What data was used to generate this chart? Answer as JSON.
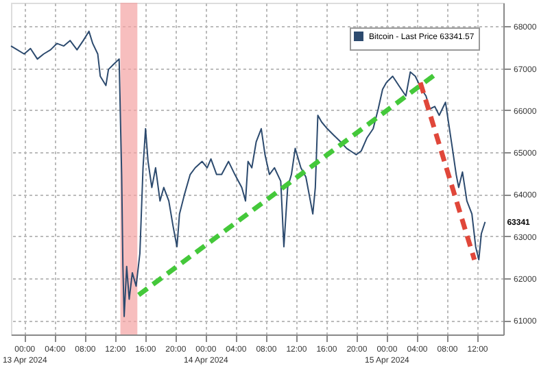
{
  "chart_data": {
    "type": "line",
    "xlim": [
      "2024-04-12T22:15",
      "2024-04-15T15:30"
    ],
    "xticks": [
      {
        "value": "2024-04-13T00:00",
        "label": "00:00\n13 Apr 2024"
      },
      {
        "value": "2024-04-13T04:00",
        "label": "04:00"
      },
      {
        "value": "2024-04-13T08:00",
        "label": "08:00"
      },
      {
        "value": "2024-04-13T12:00",
        "label": "12:00"
      },
      {
        "value": "2024-04-13T16:00",
        "label": "16:00"
      },
      {
        "value": "2024-04-13T20:00",
        "label": "20:00"
      },
      {
        "value": "2024-04-14T00:00",
        "label": "00:00\n14 Apr 2024"
      },
      {
        "value": "2024-04-14T04:00",
        "label": "04:00"
      },
      {
        "value": "2024-04-14T08:00",
        "label": "08:00"
      },
      {
        "value": "2024-04-14T12:00",
        "label": "12:00"
      },
      {
        "value": "2024-04-14T16:00",
        "label": "16:00"
      },
      {
        "value": "2024-04-14T20:00",
        "label": "20:00"
      },
      {
        "value": "2024-04-15T00:00",
        "label": "00:00\n15 Apr 2024"
      },
      {
        "value": "2024-04-15T04:00",
        "label": "04:00"
      },
      {
        "value": "2024-04-15T08:00",
        "label": "08:00"
      },
      {
        "value": "2024-04-15T12:00",
        "label": "12:00"
      }
    ],
    "ylim": [
      60660,
      68560
    ],
    "yticks": [
      61000,
      62000,
      63000,
      64000,
      65000,
      66000,
      67000,
      68000
    ],
    "grid": true,
    "legend": "top right",
    "series": [
      {
        "name": "Bitcoin - Last Price 63341.57",
        "color": "#2c4a6e",
        "x": [
          "2024-04-12T22:15",
          "2024-04-12T23:05",
          "2024-04-13T00:00",
          "2024-04-13T00:50",
          "2024-04-13T01:45",
          "2024-04-13T02:35",
          "2024-04-13T03:30",
          "2024-04-13T04:20",
          "2024-04-13T05:15",
          "2024-04-13T06:05",
          "2024-04-13T07:00",
          "2024-04-13T07:50",
          "2024-04-13T08:35",
          "2024-04-13T09:05",
          "2024-04-13T09:45",
          "2024-04-13T10:05",
          "2024-04-13T10:50",
          "2024-04-13T11:10",
          "2024-04-13T11:50",
          "2024-04-13T12:35",
          "2024-04-13T12:55",
          "2024-04-13T13:05",
          "2024-04-13T13:15",
          "2024-04-13T13:35",
          "2024-04-13T13:55",
          "2024-04-13T14:20",
          "2024-04-13T14:50",
          "2024-04-13T15:20",
          "2024-04-13T15:45",
          "2024-04-13T16:05",
          "2024-04-13T16:25",
          "2024-04-13T16:55",
          "2024-04-13T17:25",
          "2024-04-13T18:00",
          "2024-04-13T18:30",
          "2024-04-13T19:10",
          "2024-04-13T19:45",
          "2024-04-13T20:15",
          "2024-04-13T20:35",
          "2024-04-13T21:15",
          "2024-04-13T22:00",
          "2024-04-13T22:40",
          "2024-04-13T23:35",
          "2024-04-14T00:15",
          "2024-04-14T00:45",
          "2024-04-14T01:30",
          "2024-04-14T02:10",
          "2024-04-14T03:05",
          "2024-04-14T03:55",
          "2024-04-14T04:50",
          "2024-04-14T05:20",
          "2024-04-14T05:40",
          "2024-04-14T06:10",
          "2024-04-14T06:45",
          "2024-04-14T07:25",
          "2024-04-14T07:55",
          "2024-04-14T08:30",
          "2024-04-14T09:10",
          "2024-04-14T10:00",
          "2024-04-14T10:25",
          "2024-04-14T10:55",
          "2024-04-14T11:25",
          "2024-04-14T11:55",
          "2024-04-14T12:40",
          "2024-04-14T13:20",
          "2024-04-14T14:15",
          "2024-04-14T14:35",
          "2024-04-14T14:55",
          "2024-04-14T15:25",
          "2024-04-14T16:10",
          "2024-04-14T17:00",
          "2024-04-14T17:55",
          "2024-04-14T18:45",
          "2024-04-14T20:00",
          "2024-04-14T20:40",
          "2024-04-14T21:25",
          "2024-04-14T22:15",
          "2024-04-14T22:55",
          "2024-04-14T23:30",
          "2024-04-15T00:00",
          "2024-04-15T00:50",
          "2024-04-15T01:45",
          "2024-04-15T02:35",
          "2024-04-15T03:10",
          "2024-04-15T03:50",
          "2024-04-15T04:40",
          "2024-04-15T05:15",
          "2024-04-15T05:45",
          "2024-04-15T06:25",
          "2024-04-15T07:00",
          "2024-04-15T07:50",
          "2024-04-15T08:45",
          "2024-04-15T09:15",
          "2024-04-15T09:35",
          "2024-04-15T10:05",
          "2024-04-15T10:40",
          "2024-04-15T11:20",
          "2024-04-15T11:50",
          "2024-04-15T12:15",
          "2024-04-15T12:35",
          "2024-04-15T13:05"
        ],
        "values": [
          67530,
          67440,
          67340,
          67470,
          67220,
          67340,
          67440,
          67590,
          67530,
          67660,
          67440,
          67660,
          67880,
          67590,
          67340,
          66810,
          66590,
          66970,
          67090,
          67220,
          64470,
          62280,
          61090,
          62280,
          61500,
          62130,
          61810,
          62590,
          64630,
          65560,
          64780,
          64160,
          64630,
          63840,
          64160,
          63840,
          63220,
          62750,
          63530,
          64000,
          64470,
          64630,
          64780,
          64630,
          64840,
          64470,
          64470,
          64780,
          64470,
          64160,
          63840,
          64780,
          64630,
          65250,
          65560,
          64940,
          64470,
          64630,
          64310,
          62750,
          64160,
          64470,
          65090,
          64630,
          64410,
          63530,
          64160,
          65880,
          65720,
          65560,
          65410,
          65250,
          65090,
          64940,
          65030,
          65340,
          65560,
          66030,
          66500,
          66660,
          66810,
          66560,
          66340,
          66910,
          66810,
          66500,
          66340,
          66030,
          66090,
          65880,
          66190,
          65090,
          64470,
          64160,
          64530,
          63840,
          63530,
          62750,
          62440,
          63060,
          63341
        ]
      },
      {
        "type": "line",
        "line_style": "dashed",
        "color": "#44c83a",
        "x": [
          "2024-04-13T15:10",
          "2024-04-15T06:50"
        ],
        "values": [
          61600,
          66900
        ]
      },
      {
        "type": "line",
        "line_style": "dashed",
        "color": "#e0473a",
        "x": [
          "2024-04-15T04:30",
          "2024-04-15T11:40"
        ],
        "values": [
          66660,
          62440
        ]
      }
    ],
    "bands": [
      {
        "axis": "x",
        "from": "2024-04-13T12:45",
        "to": "2024-04-13T15:00",
        "color": "#f4a3a3"
      }
    ],
    "annotations": [
      {
        "text": "63341",
        "x": "2024-04-15T13:05",
        "y": 63341
      }
    ]
  }
}
